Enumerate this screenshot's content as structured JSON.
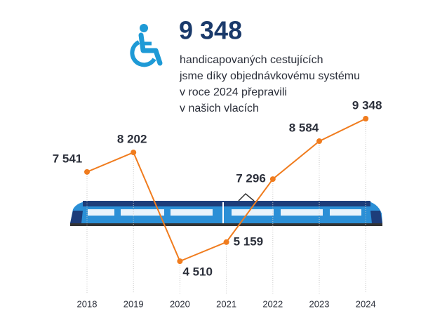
{
  "chart_data": {
    "type": "line",
    "title": "9 348",
    "subtitle_lines": [
      "handicapovaných cestujících",
      "jsme díky objednávkovému systému",
      "v roce 2024 přepravili",
      "v našich vlacích"
    ],
    "categories": [
      "2018",
      "2019",
      "2020",
      "2021",
      "2022",
      "2023",
      "2024"
    ],
    "values": [
      7541,
      8202,
      4510,
      5159,
      7296,
      8584,
      9348
    ],
    "value_labels": [
      "7 541",
      "8 202",
      "4 510",
      "5 159",
      "7 296",
      "8 584",
      "9 348"
    ],
    "color": "#f07c1e"
  }
}
